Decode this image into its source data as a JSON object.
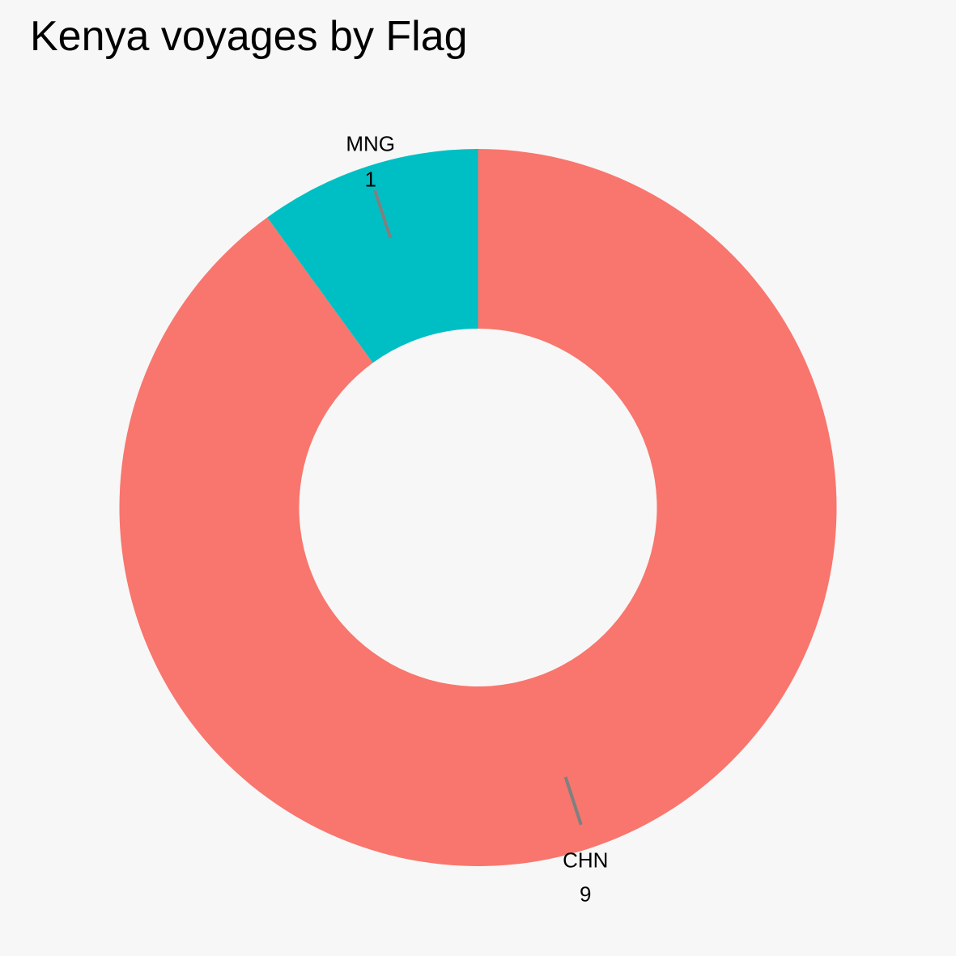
{
  "chart_data": {
    "type": "pie",
    "variant": "donut",
    "title": "Kenya voyages by Flag",
    "slices": [
      {
        "label": "CHN",
        "value": 9,
        "color": "#f8766d"
      },
      {
        "label": "MNG",
        "value": 1,
        "color": "#00bfc4"
      }
    ],
    "start": "12 o'clock",
    "direction": "clockwise",
    "legend": "none",
    "background": "#f7f7f7",
    "label_style": "category and value outside ring with leader line",
    "leader_color": "#808080"
  }
}
